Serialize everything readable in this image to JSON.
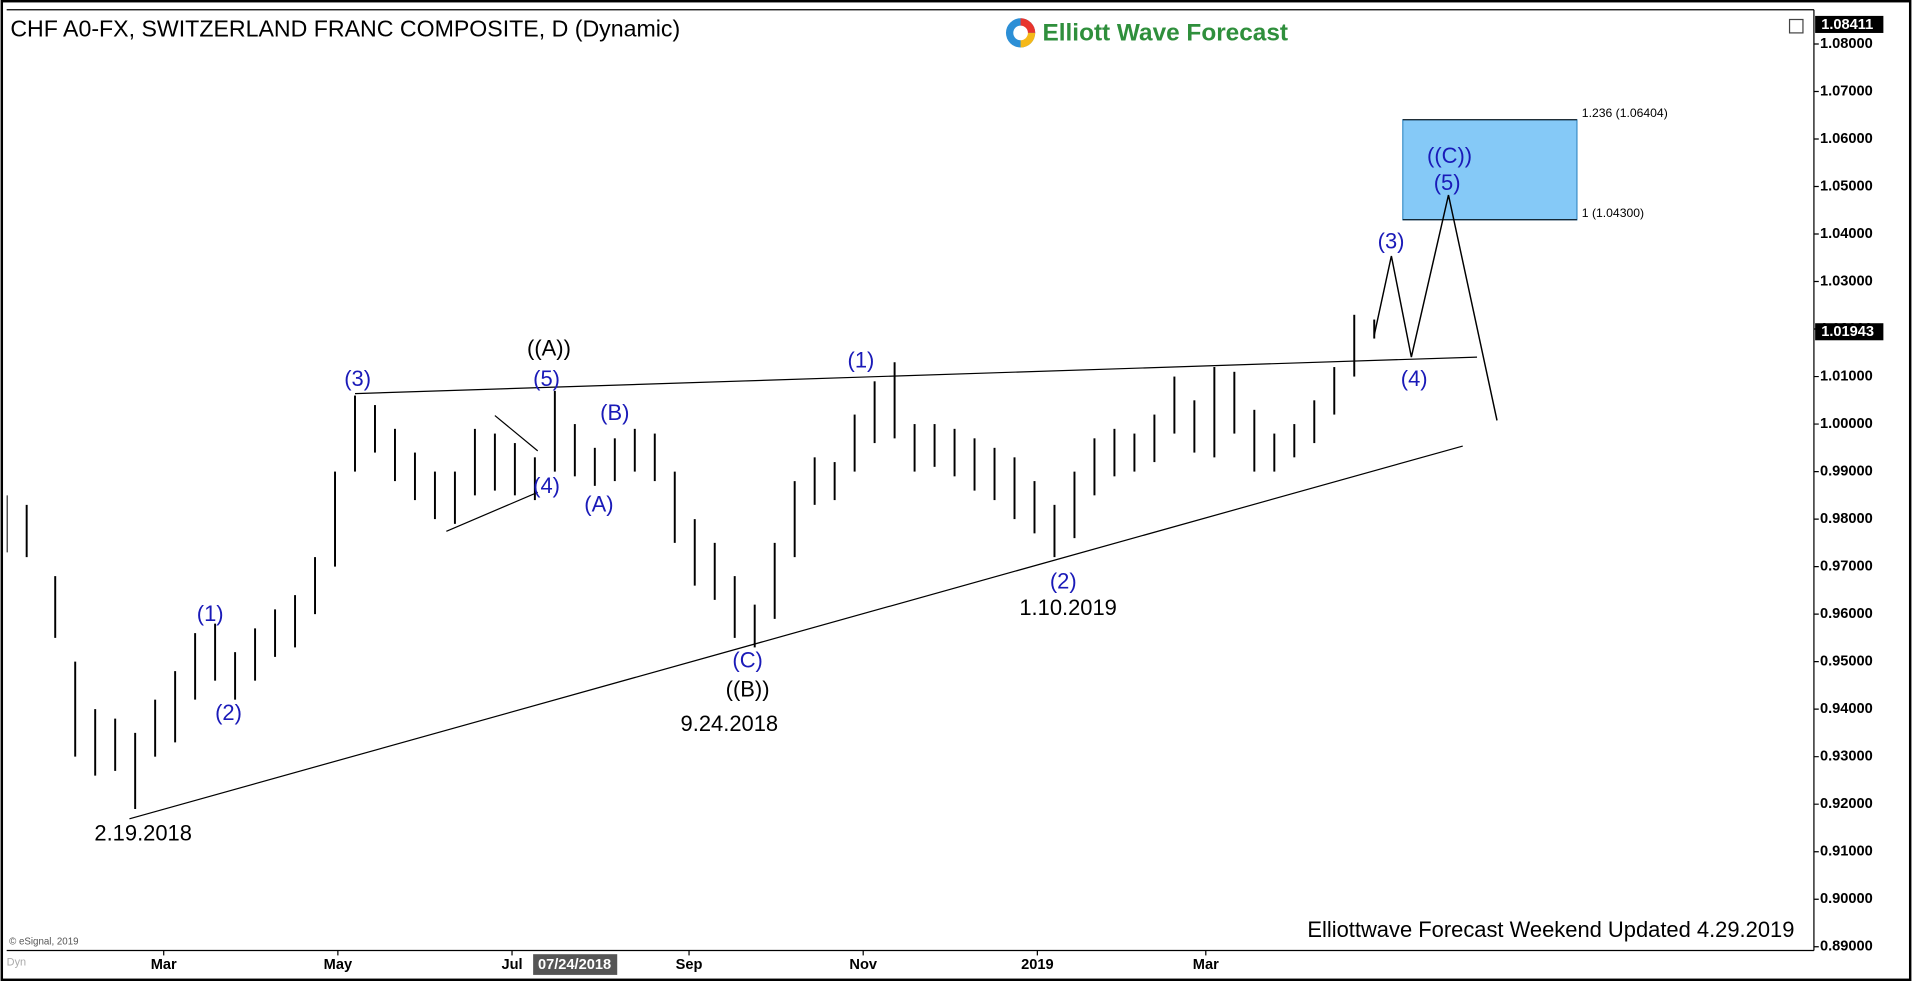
{
  "chart_data": {
    "type": "ohlc",
    "title": "CHF A0-FX, SWITZERLAND FRANC COMPOSITE, D (Dynamic)",
    "logo": "Elliott Wave Forecast",
    "footer": "Elliottwave Forecast Weekend Updated 4.29.2019",
    "copyright": "© eSignal, 2019",
    "mode": "Dyn",
    "cursor_date": "07/24/2018",
    "bar_color": "#000000",
    "xlim": [
      "2018-01-05",
      "2019-09-30"
    ],
    "ylim": [
      0.8892,
      1.0872
    ],
    "xticks": [
      {
        "value": "2018-03-01",
        "label": "Mar"
      },
      {
        "value": "2018-05-01",
        "label": "May"
      },
      {
        "value": "2018-07-01",
        "label": "Jul"
      },
      {
        "value": "2018-09-01",
        "label": "Sep"
      },
      {
        "value": "2018-11-01",
        "label": "Nov"
      },
      {
        "value": "2019-01-01",
        "label": "2019"
      },
      {
        "value": "2019-03-01",
        "label": "Mar"
      }
    ],
    "yticks": [
      {
        "value": 0.89,
        "label": "0.89000"
      },
      {
        "value": 0.9,
        "label": "0.90000"
      },
      {
        "value": 0.91,
        "label": "0.91000"
      },
      {
        "value": 0.92,
        "label": "0.92000"
      },
      {
        "value": 0.93,
        "label": "0.93000"
      },
      {
        "value": 0.94,
        "label": "0.94000"
      },
      {
        "value": 0.95,
        "label": "0.95000"
      },
      {
        "value": 0.96,
        "label": "0.96000"
      },
      {
        "value": 0.97,
        "label": "0.97000"
      },
      {
        "value": 0.98,
        "label": "0.98000"
      },
      {
        "value": 0.99,
        "label": "0.99000"
      },
      {
        "value": 1.0,
        "label": "1.00000"
      },
      {
        "value": 1.01,
        "label": "1.01000"
      },
      {
        "value": 1.02,
        "label": "1.02000"
      },
      {
        "value": 1.03,
        "label": "1.03000"
      },
      {
        "value": 1.04,
        "label": "1.04000"
      },
      {
        "value": 1.05,
        "label": "1.05000"
      },
      {
        "value": 1.06,
        "label": "1.06000"
      },
      {
        "value": 1.07,
        "label": "1.07000"
      },
      {
        "value": 1.08,
        "label": "1.08000"
      }
    ],
    "price_markers": [
      1.08411,
      1.01943
    ],
    "bars": {
      "x": [
        "2018-01-05",
        "2018-01-12",
        "2018-01-22",
        "2018-01-29",
        "2018-02-05",
        "2018-02-12",
        "2018-02-19",
        "2018-02-26",
        "2018-03-05",
        "2018-03-12",
        "2018-03-19",
        "2018-03-26",
        "2018-04-02",
        "2018-04-09",
        "2018-04-16",
        "2018-04-23",
        "2018-04-30",
        "2018-05-07",
        "2018-05-14",
        "2018-05-21",
        "2018-05-28",
        "2018-06-04",
        "2018-06-11",
        "2018-06-18",
        "2018-06-25",
        "2018-07-02",
        "2018-07-09",
        "2018-07-16",
        "2018-07-23",
        "2018-07-30",
        "2018-08-06",
        "2018-08-13",
        "2018-08-20",
        "2018-08-27",
        "2018-09-03",
        "2018-09-10",
        "2018-09-17",
        "2018-09-24",
        "2018-10-01",
        "2018-10-08",
        "2018-10-15",
        "2018-10-22",
        "2018-10-29",
        "2018-11-05",
        "2018-11-12",
        "2018-11-19",
        "2018-11-26",
        "2018-12-03",
        "2018-12-10",
        "2018-12-17",
        "2018-12-24",
        "2018-12-31",
        "2019-01-07",
        "2019-01-14",
        "2019-01-21",
        "2019-01-28",
        "2019-02-04",
        "2019-02-11",
        "2019-02-18",
        "2019-02-25",
        "2019-03-04",
        "2019-03-11",
        "2019-03-18",
        "2019-03-25",
        "2019-04-01",
        "2019-04-08",
        "2019-04-15",
        "2019-04-22",
        "2019-04-29"
      ],
      "high": [
        0.985,
        0.983,
        0.968,
        0.95,
        0.94,
        0.938,
        0.935,
        0.942,
        0.948,
        0.956,
        0.958,
        0.952,
        0.957,
        0.961,
        0.964,
        0.972,
        0.99,
        1.006,
        1.004,
        0.999,
        0.994,
        0.99,
        0.99,
        0.999,
        0.998,
        0.996,
        0.993,
        1.007,
        1.0,
        0.995,
        0.997,
        0.999,
        0.998,
        0.99,
        0.98,
        0.975,
        0.968,
        0.962,
        0.975,
        0.988,
        0.993,
        0.992,
        1.002,
        1.009,
        1.013,
        1.0,
        1.0,
        0.999,
        0.997,
        0.995,
        0.993,
        0.988,
        0.983,
        0.99,
        0.997,
        0.999,
        0.998,
        1.002,
        1.01,
        1.005,
        1.012,
        1.011,
        1.003,
        0.998,
        1.0,
        1.005,
        1.012,
        1.023,
        1.022
      ],
      "low": [
        0.973,
        0.972,
        0.955,
        0.93,
        0.926,
        0.927,
        0.919,
        0.93,
        0.933,
        0.942,
        0.946,
        0.942,
        0.946,
        0.951,
        0.953,
        0.96,
        0.97,
        0.99,
        0.994,
        0.988,
        0.984,
        0.98,
        0.979,
        0.985,
        0.986,
        0.985,
        0.984,
        0.99,
        0.989,
        0.987,
        0.988,
        0.99,
        0.988,
        0.975,
        0.966,
        0.963,
        0.955,
        0.953,
        0.959,
        0.972,
        0.983,
        0.984,
        0.99,
        0.996,
        0.997,
        0.99,
        0.991,
        0.989,
        0.986,
        0.984,
        0.98,
        0.977,
        0.972,
        0.976,
        0.985,
        0.989,
        0.99,
        0.992,
        0.998,
        0.994,
        0.993,
        0.998,
        0.99,
        0.99,
        0.993,
        0.996,
        1.002,
        1.01,
        1.018
      ]
    },
    "trendlines": [
      {
        "x": [
          "2018-05-07",
          "2019-06-04"
        ],
        "y": [
          1.00641,
          1.0141
        ]
      },
      {
        "x": [
          "2018-02-17",
          "2019-05-30"
        ],
        "y": [
          0.91692,
          0.99538
        ]
      },
      {
        "x": [
          "2018-06-08",
          "2018-07-10"
        ],
        "y": [
          0.97744,
          0.98564
        ]
      },
      {
        "x": [
          "2018-06-25",
          "2018-07-10"
        ],
        "y": [
          1.00179,
          0.99436
        ]
      }
    ],
    "projection": {
      "x": [
        "2019-04-29",
        "2019-05-05",
        "2019-05-12",
        "2019-05-25",
        "2019-06-11"
      ],
      "y": [
        1.01872,
        1.03538,
        1.0141,
        1.04821,
        1.00077
      ]
    },
    "target_box": {
      "x": [
        "2019-05-09",
        "2019-07-09"
      ],
      "color": "#85c9f7"
    },
    "fib_levels": [
      {
        "value": 1.06404,
        "label": "1.236 (1.06404)"
      },
      {
        "value": 1.043,
        "label": "1 (1.04300)"
      }
    ],
    "annotations": [
      "(3)",
      "((A))",
      "(5)",
      "(B)",
      "(4)",
      "(A)",
      "(1)",
      "(2)",
      "2.19.2018",
      "(C)",
      "((B))",
      "9.24.2018",
      "(1)",
      "(2)",
      "1.10.2019",
      "(3)",
      "(4)",
      "((C))",
      "(5)"
    ]
  }
}
